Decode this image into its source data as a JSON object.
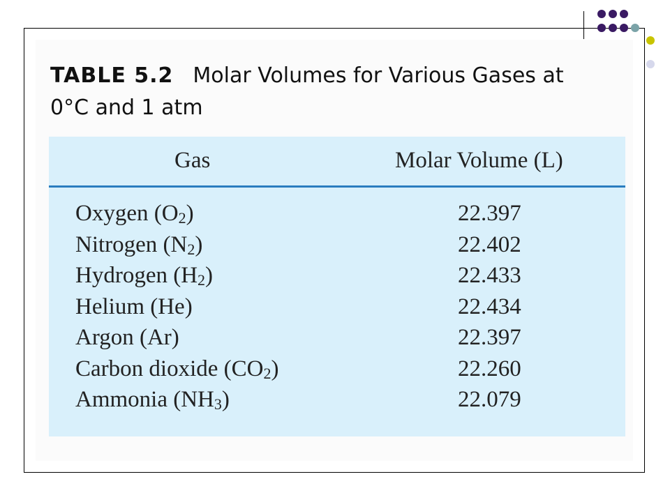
{
  "decoration": {
    "dot_colors": [
      "#3a1a63",
      "#7ba3a8",
      "#c8c400",
      "#d6d8ec"
    ]
  },
  "table": {
    "label": "TABLE 5.2",
    "title": "Molar Volumes for Various Gases at 0°C and 1 atm",
    "columns": [
      "Gas",
      "Molar Volume (L)"
    ],
    "rows": [
      {
        "gas": "Oxygen (O",
        "sub": "2",
        "tail": ")",
        "volume": "22.397"
      },
      {
        "gas": "Nitrogen (N",
        "sub": "2",
        "tail": ")",
        "volume": "22.402"
      },
      {
        "gas": "Hydrogen (H",
        "sub": "2",
        "tail": ")",
        "volume": "22.433"
      },
      {
        "gas": "Helium (He)",
        "sub": "",
        "tail": "",
        "volume": "22.434"
      },
      {
        "gas": "Argon (Ar)",
        "sub": "",
        "tail": "",
        "volume": "22.397"
      },
      {
        "gas": "Carbon dioxide (CO",
        "sub": "2",
        "tail": ")",
        "volume": "22.260"
      },
      {
        "gas": "Ammonia (NH",
        "sub": "3",
        "tail": ")",
        "volume": "22.079"
      }
    ]
  }
}
